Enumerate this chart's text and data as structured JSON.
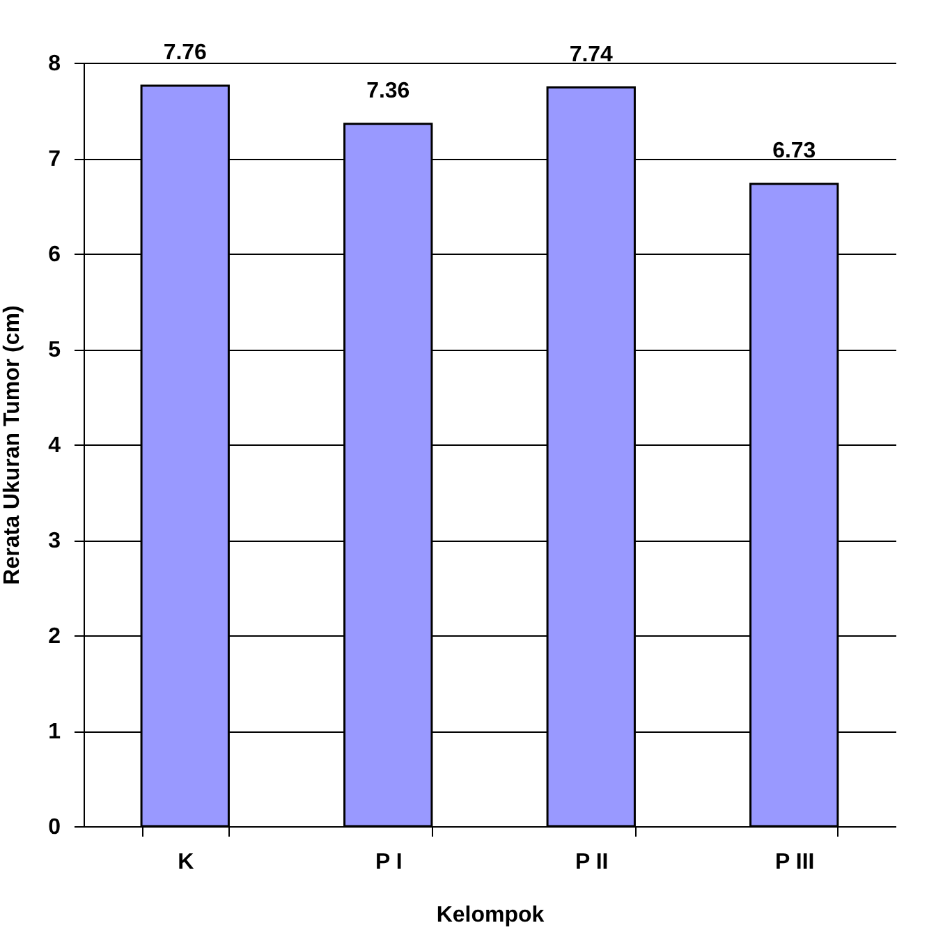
{
  "chart_data": {
    "type": "bar",
    "xlabel": "Kelompok",
    "ylabel": "Rerata Ukuran Tumor (cm)",
    "categories": [
      "K",
      "P I",
      "P II",
      "P III"
    ],
    "values": [
      7.76,
      7.36,
      7.74,
      6.73
    ],
    "color": "#9999ff",
    "ylim": [
      0,
      8
    ],
    "yticks": [
      0,
      1,
      2,
      3,
      4,
      5,
      6,
      7,
      8
    ],
    "grid": "y",
    "data_labels": true
  }
}
